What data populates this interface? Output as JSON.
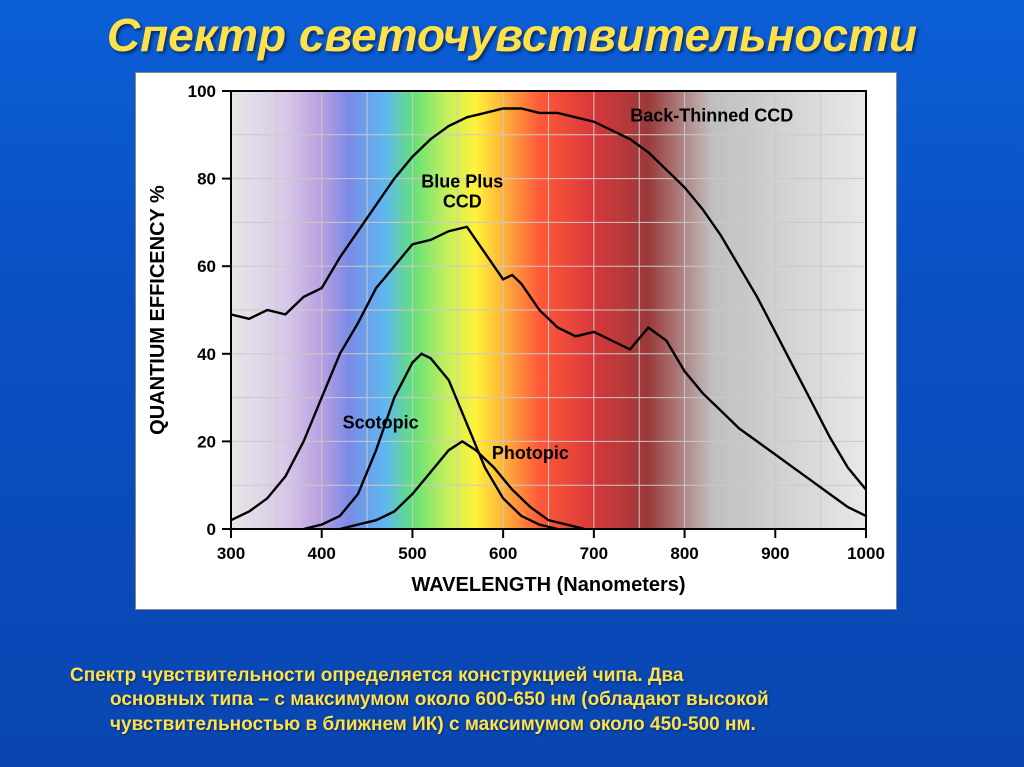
{
  "title": "Спектр  светочувствительности",
  "description_line1": "Спектр чувствительности определяется конструкцией чипа. Два",
  "description_line2": "основных типа – с максимумом около 600-650 нм (обладают высокой чувствительностью в ближнем ИК) с максимумом около 450-500 нм.",
  "chart": {
    "type": "line",
    "xlabel": "WAVELENGTH (Nanometers)",
    "ylabel": "QUANTIUM EFFICENCY %",
    "xlim": [
      300,
      1000
    ],
    "ylim": [
      0,
      100
    ],
    "xtick_step": 100,
    "ytick_step": 20,
    "xticks": [
      300,
      400,
      500,
      600,
      700,
      800,
      900,
      1000
    ],
    "yticks": [
      0,
      20,
      40,
      60,
      80,
      100
    ],
    "plot_background": "spectrum-gradient",
    "spectrum_stops": [
      {
        "nm": 300,
        "color": "#e6e6e6"
      },
      {
        "nm": 360,
        "color": "#d9c9e8"
      },
      {
        "nm": 400,
        "color": "#b89fe0"
      },
      {
        "nm": 430,
        "color": "#7a8be6"
      },
      {
        "nm": 470,
        "color": "#5fb7f0"
      },
      {
        "nm": 500,
        "color": "#63e07a"
      },
      {
        "nm": 540,
        "color": "#c8f05a"
      },
      {
        "nm": 570,
        "color": "#fff23a"
      },
      {
        "nm": 600,
        "color": "#ffb33a"
      },
      {
        "nm": 640,
        "color": "#ff5a3a"
      },
      {
        "nm": 700,
        "color": "#d8383a"
      },
      {
        "nm": 760,
        "color": "#9a3a3a"
      },
      {
        "nm": 830,
        "color": "#bfbfbf"
      },
      {
        "nm": 1000,
        "color": "#e8e8e8"
      }
    ],
    "grid_color": "#c9c9c9",
    "axis_color": "#000000",
    "curve_color": "#000000",
    "curve_width": 2.4,
    "label_fontsize": 20,
    "tick_fontsize": 17,
    "series_label_fontsize": 18,
    "series": [
      {
        "name": "Back-Thinned CCD",
        "label_pos": {
          "nm": 830,
          "pct": 93
        },
        "points": [
          [
            300,
            49
          ],
          [
            320,
            48
          ],
          [
            340,
            50
          ],
          [
            360,
            49
          ],
          [
            380,
            53
          ],
          [
            400,
            55
          ],
          [
            420,
            62
          ],
          [
            440,
            68
          ],
          [
            460,
            74
          ],
          [
            480,
            80
          ],
          [
            500,
            85
          ],
          [
            520,
            89
          ],
          [
            540,
            92
          ],
          [
            560,
            94
          ],
          [
            580,
            95
          ],
          [
            600,
            96
          ],
          [
            620,
            96
          ],
          [
            640,
            95
          ],
          [
            660,
            95
          ],
          [
            680,
            94
          ],
          [
            700,
            93
          ],
          [
            720,
            91
          ],
          [
            740,
            89
          ],
          [
            760,
            86
          ],
          [
            780,
            82
          ],
          [
            800,
            78
          ],
          [
            820,
            73
          ],
          [
            840,
            67
          ],
          [
            860,
            60
          ],
          [
            880,
            53
          ],
          [
            900,
            45
          ],
          [
            920,
            37
          ],
          [
            940,
            29
          ],
          [
            960,
            21
          ],
          [
            980,
            14
          ],
          [
            1000,
            9
          ]
        ]
      },
      {
        "name": "Blue Plus CCD",
        "label_pos": {
          "nm": 555,
          "pct": 78
        },
        "points": [
          [
            300,
            2
          ],
          [
            320,
            4
          ],
          [
            340,
            7
          ],
          [
            360,
            12
          ],
          [
            380,
            20
          ],
          [
            400,
            30
          ],
          [
            420,
            40
          ],
          [
            440,
            47
          ],
          [
            460,
            55
          ],
          [
            480,
            60
          ],
          [
            500,
            65
          ],
          [
            520,
            66
          ],
          [
            540,
            68
          ],
          [
            560,
            69
          ],
          [
            580,
            63
          ],
          [
            600,
            57
          ],
          [
            610,
            58
          ],
          [
            620,
            56
          ],
          [
            640,
            50
          ],
          [
            660,
            46
          ],
          [
            680,
            44
          ],
          [
            700,
            45
          ],
          [
            720,
            43
          ],
          [
            740,
            41
          ],
          [
            760,
            46
          ],
          [
            780,
            43
          ],
          [
            800,
            36
          ],
          [
            820,
            31
          ],
          [
            840,
            27
          ],
          [
            860,
            23
          ],
          [
            880,
            20
          ],
          [
            900,
            17
          ],
          [
            920,
            14
          ],
          [
            940,
            11
          ],
          [
            960,
            8
          ],
          [
            980,
            5
          ],
          [
            1000,
            3
          ]
        ]
      },
      {
        "name": "Scotopic",
        "label_pos": {
          "nm": 465,
          "pct": 23
        },
        "points": [
          [
            380,
            0
          ],
          [
            400,
            1
          ],
          [
            420,
            3
          ],
          [
            440,
            8
          ],
          [
            460,
            18
          ],
          [
            480,
            30
          ],
          [
            500,
            38
          ],
          [
            510,
            40
          ],
          [
            520,
            39
          ],
          [
            540,
            34
          ],
          [
            560,
            24
          ],
          [
            580,
            14
          ],
          [
            600,
            7
          ],
          [
            620,
            3
          ],
          [
            640,
            1
          ],
          [
            660,
            0
          ]
        ]
      },
      {
        "name": "Photopic",
        "label_pos": {
          "nm": 630,
          "pct": 16
        },
        "points": [
          [
            420,
            0
          ],
          [
            440,
            1
          ],
          [
            460,
            2
          ],
          [
            480,
            4
          ],
          [
            500,
            8
          ],
          [
            520,
            13
          ],
          [
            540,
            18
          ],
          [
            555,
            20
          ],
          [
            570,
            18
          ],
          [
            590,
            14
          ],
          [
            610,
            9
          ],
          [
            630,
            5
          ],
          [
            650,
            2
          ],
          [
            670,
            1
          ],
          [
            690,
            0
          ]
        ]
      }
    ]
  }
}
